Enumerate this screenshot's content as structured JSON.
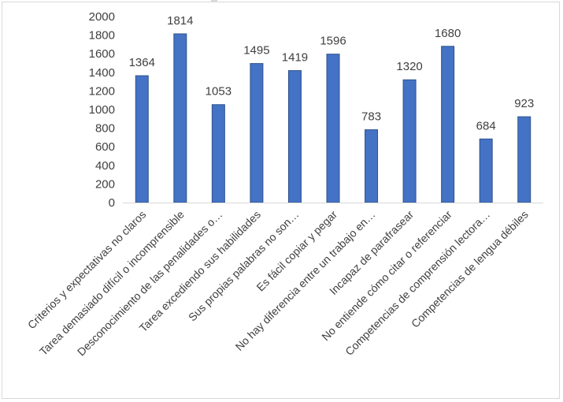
{
  "chart_data": {
    "type": "bar",
    "title": "",
    "xlabel": "",
    "ylabel": "",
    "ylim": [
      0,
      2000
    ],
    "yticks": [
      0,
      200,
      400,
      600,
      800,
      1000,
      1200,
      1400,
      1600,
      1800,
      2000
    ],
    "grid": false,
    "legend": "none",
    "bar_color": "#4472c4",
    "bar_edge_color": "#2f528f",
    "categories": [
      "Criterios y expectativas no claros",
      "Tarea demasiado difícil o incomprensible",
      "Desconocimiento de las penalidades o…",
      "Tarea excediendo sus habilidades",
      "Sus propias palabras no son…",
      "Es fácil copiar y pegar",
      "No hay diferencia entre un trabajo en…",
      "Incapaz de parafrasear",
      "No entiende cómo citar o referenciar",
      "Competencias de comprensión lectora…",
      "Competencias de lengua débiles"
    ],
    "values": [
      1364,
      1814,
      1053,
      1495,
      1419,
      1596,
      783,
      1320,
      1680,
      684,
      923
    ],
    "data_labels": [
      "1364",
      "1814",
      "1053",
      "1495",
      "1419",
      "1596",
      "783",
      "1320",
      "1680",
      "684",
      "923"
    ]
  }
}
